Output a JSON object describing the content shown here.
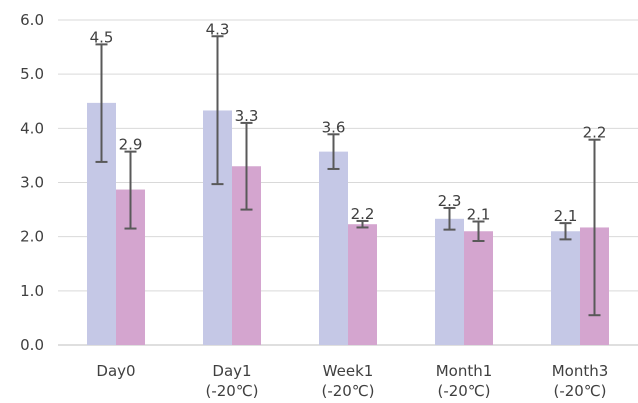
{
  "chart_data": {
    "type": "bar",
    "title": "",
    "xlabel": "",
    "ylabel": "",
    "ylim": [
      0.0,
      6.0
    ],
    "yticks": [
      "0.0",
      "1.0",
      "2.0",
      "3.0",
      "4.0",
      "5.0",
      "6.0"
    ],
    "grid": true,
    "legend": "none",
    "categories": [
      [
        "Day0"
      ],
      [
        "Day1",
        "(-20℃)"
      ],
      [
        "Week1",
        "(-20℃)"
      ],
      [
        "Month1",
        "(-20℃)"
      ],
      [
        "Month3",
        "(-20℃)"
      ]
    ],
    "series": [
      {
        "color": "#c5c8e6",
        "values": [
          4.47,
          4.33,
          3.57,
          2.33,
          2.1
        ],
        "labels": [
          "4.5",
          "4.3",
          "3.6",
          "2.3",
          "2.1"
        ],
        "error_low": [
          3.38,
          2.97,
          3.25,
          2.13,
          1.95
        ],
        "error_high": [
          5.55,
          5.7,
          3.89,
          2.53,
          2.25
        ]
      },
      {
        "color": "#d4a5cf",
        "values": [
          2.87,
          3.3,
          2.23,
          2.1,
          2.17
        ],
        "labels": [
          "2.9",
          "3.3",
          "2.2",
          "2.1",
          "2.2"
        ],
        "error_low": [
          2.15,
          2.5,
          2.17,
          1.92,
          0.55
        ],
        "error_high": [
          3.57,
          4.1,
          2.29,
          2.28,
          3.79
        ]
      }
    ]
  }
}
